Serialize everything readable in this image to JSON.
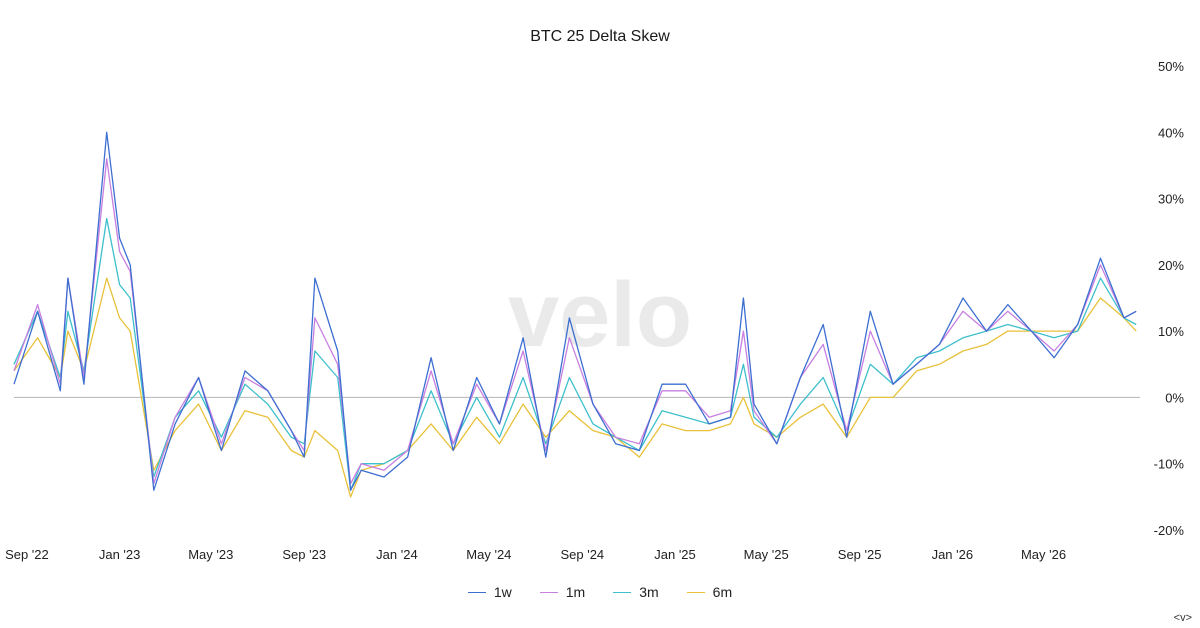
{
  "chart_data": {
    "type": "line",
    "title": "BTC 25 Delta Skew",
    "watermark": "velo",
    "y_axis": {
      "position": "right",
      "ylim": [
        -20,
        50
      ],
      "ticks": [
        50,
        40,
        30,
        20,
        10,
        0,
        -10,
        -20
      ],
      "tick_labels": [
        "50%",
        "40%",
        "30%",
        "20%",
        "10%",
        "0%",
        "-10%",
        "-20%"
      ],
      "unit": "%"
    },
    "x_axis": {
      "xlim": [
        "2022-08-15",
        "2026-09-05"
      ],
      "ticks": [
        "2022-09-01",
        "2023-01-01",
        "2023-05-01",
        "2023-09-01",
        "2024-01-01",
        "2024-05-01",
        "2024-09-01",
        "2025-01-01",
        "2025-05-01",
        "2025-09-01",
        "2026-01-01",
        "2026-05-01"
      ],
      "tick_labels": [
        "Sep '22",
        "Jan '23",
        "May '23",
        "Sep '23",
        "Jan '24",
        "May '24",
        "Sep '24",
        "Jan '25",
        "May '25",
        "Sep '25",
        "Jan '26",
        "May '26"
      ]
    },
    "zero_line": true,
    "grid": false,
    "legend_position": "bottom-center",
    "x": [
      "2022-08-15",
      "2022-09-15",
      "2022-10-15",
      "2022-10-25",
      "2022-11-15",
      "2022-12-15",
      "2023-01-01",
      "2023-01-15",
      "2023-02-15",
      "2023-03-15",
      "2023-04-15",
      "2023-05-15",
      "2023-06-15",
      "2023-07-15",
      "2023-08-15",
      "2023-09-01",
      "2023-09-15",
      "2023-10-15",
      "2023-11-01",
      "2023-11-15",
      "2023-12-15",
      "2024-01-15",
      "2024-02-15",
      "2024-03-15",
      "2024-04-15",
      "2024-05-15",
      "2024-06-15",
      "2024-07-15",
      "2024-08-15",
      "2024-09-15",
      "2024-10-15",
      "2024-11-15",
      "2024-12-15",
      "2025-01-15",
      "2025-02-15",
      "2025-03-15",
      "2025-04-01",
      "2025-04-15",
      "2025-05-15",
      "2025-06-15",
      "2025-07-15",
      "2025-08-15",
      "2025-09-15",
      "2025-10-15",
      "2025-11-15",
      "2025-12-15",
      "2026-01-15",
      "2026-02-15",
      "2026-03-15",
      "2026-04-15",
      "2026-05-15",
      "2026-06-15",
      "2026-07-15",
      "2026-08-15",
      "2026-08-31"
    ],
    "series": [
      {
        "name": "1w",
        "color": "#3d6fd1",
        "values": [
          2,
          13,
          1,
          18,
          2,
          40,
          24,
          20,
          -14,
          -4,
          3,
          -8,
          4,
          1,
          -5,
          -9,
          18,
          7,
          -14,
          -11,
          -12,
          -9,
          6,
          -8,
          3,
          -4,
          9,
          -9,
          12,
          -1,
          -7,
          -8,
          2,
          2,
          -4,
          -3,
          15,
          -1,
          -7,
          3,
          11,
          -6,
          13,
          2,
          5,
          8,
          15,
          10,
          14,
          10,
          6,
          11,
          21,
          12,
          13
        ]
      },
      {
        "name": "1m",
        "color": "#c77fe0",
        "values": [
          4,
          14,
          2,
          18,
          3,
          36,
          22,
          19,
          -13,
          -3,
          3,
          -7,
          3,
          1,
          -5,
          -8,
          12,
          5,
          -13,
          -10,
          -11,
          -8,
          4,
          -7,
          2,
          -4,
          7,
          -8,
          9,
          -1,
          -6,
          -7,
          1,
          1,
          -3,
          -2,
          10,
          -2,
          -7,
          3,
          8,
          -5,
          10,
          2,
          5,
          8,
          13,
          10,
          13,
          10,
          7,
          11,
          20,
          12,
          13
        ]
      },
      {
        "name": "3m",
        "color": "#3ec0cc",
        "values": [
          5,
          13,
          3,
          13,
          4,
          27,
          17,
          15,
          -12,
          -3,
          1,
          -6,
          2,
          -1,
          -6,
          -7,
          7,
          3,
          -14,
          -10,
          -10,
          -8,
          1,
          -7,
          0,
          -6,
          3,
          -7,
          3,
          -4,
          -6,
          -8,
          -2,
          -3,
          -4,
          -3,
          5,
          -3,
          -6,
          -1,
          3,
          -5,
          5,
          2,
          6,
          7,
          9,
          10,
          11,
          10,
          9,
          10,
          18,
          12,
          11
        ]
      },
      {
        "name": "6m",
        "color": "#e8c13a",
        "values": [
          4,
          9,
          3,
          10,
          4,
          18,
          12,
          10,
          -11,
          -5,
          -1,
          -8,
          -2,
          -3,
          -8,
          -9,
          -5,
          -8,
          -15,
          -11,
          -10,
          -8,
          -4,
          -8,
          -3,
          -7,
          -1,
          -6,
          -2,
          -5,
          -6,
          -9,
          -4,
          -5,
          -5,
          -4,
          0,
          -4,
          -6,
          -3,
          -1,
          -6,
          0,
          0,
          4,
          5,
          7,
          8,
          10,
          10,
          10,
          10,
          15,
          12,
          10
        ]
      }
    ]
  },
  "footer": {
    "mark": "<v>"
  }
}
